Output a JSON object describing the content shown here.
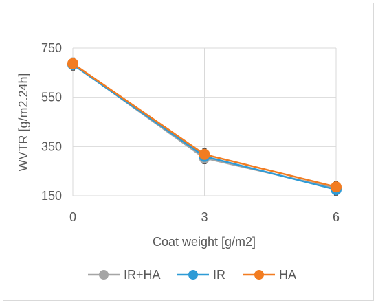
{
  "chart_data": {
    "type": "line",
    "xlabel": "Coat weight [g/m2]",
    "ylabel": "WVTR [g/m2.24h]",
    "x": [
      0,
      3,
      6
    ],
    "x_ticks": [
      "0",
      "3",
      "6"
    ],
    "y_ticks": [
      "150",
      "350",
      "550",
      "750"
    ],
    "xlim": [
      0,
      6
    ],
    "ylim": [
      150,
      750
    ],
    "grid": true,
    "legend_position": "bottom",
    "series": [
      {
        "name": "IR+HA",
        "values": [
          685,
          303,
          180
        ],
        "color": "#a5a5a5"
      },
      {
        "name": "IR",
        "values": [
          683,
          310,
          175
        ],
        "color": "#2e9bd6"
      },
      {
        "name": "HA",
        "values": [
          687,
          318,
          186
        ],
        "color": "#f27c21"
      }
    ]
  }
}
